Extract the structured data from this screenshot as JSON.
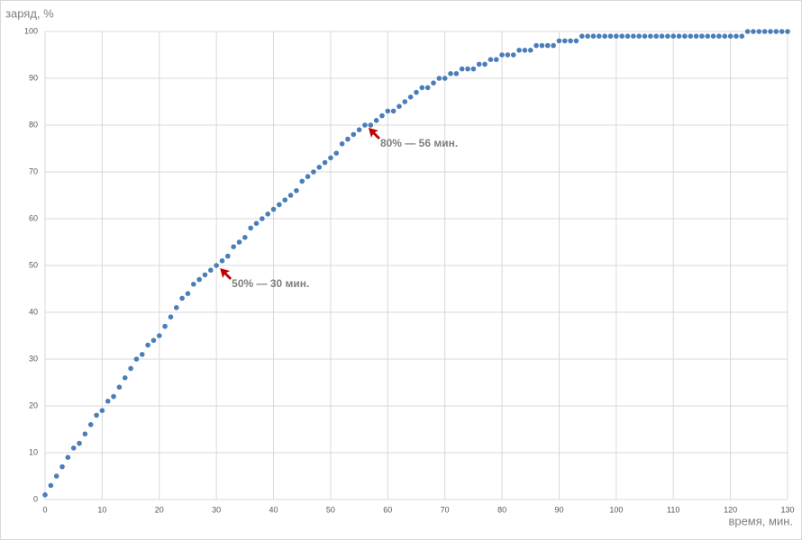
{
  "chart_data": {
    "type": "scatter",
    "y_label": "заряд, %",
    "x_label": "время, мин.",
    "x": [
      0,
      1,
      2,
      3,
      4,
      5,
      6,
      7,
      8,
      9,
      10,
      11,
      12,
      13,
      14,
      15,
      16,
      17,
      18,
      19,
      20,
      21,
      22,
      23,
      24,
      25,
      26,
      27,
      28,
      29,
      30,
      31,
      32,
      33,
      34,
      35,
      36,
      37,
      38,
      39,
      40,
      41,
      42,
      43,
      44,
      45,
      46,
      47,
      48,
      49,
      50,
      51,
      52,
      53,
      54,
      55,
      56,
      57,
      58,
      59,
      60,
      61,
      62,
      63,
      64,
      65,
      66,
      67,
      68,
      69,
      70,
      71,
      72,
      73,
      74,
      75,
      76,
      77,
      78,
      79,
      80,
      81,
      82,
      83,
      84,
      85,
      86,
      87,
      88,
      89,
      90,
      91,
      92,
      93,
      94,
      95,
      96,
      97,
      98,
      99,
      100,
      101,
      102,
      103,
      104,
      105,
      106,
      107,
      108,
      109,
      110,
      111,
      112,
      113,
      114,
      115,
      116,
      117,
      118,
      119,
      120,
      121,
      122,
      123,
      124,
      125,
      126,
      127,
      128,
      129,
      130
    ],
    "series": [
      {
        "color": "#4a7ebb",
        "values": [
          1,
          3,
          5,
          7,
          9,
          11,
          12,
          14,
          16,
          18,
          19,
          21,
          22,
          24,
          26,
          28,
          30,
          31,
          33,
          34,
          35,
          37,
          39,
          41,
          43,
          44,
          46,
          47,
          48,
          49,
          50,
          51,
          52,
          54,
          55,
          56,
          58,
          59,
          60,
          61,
          62,
          63,
          64,
          65,
          66,
          68,
          69,
          70,
          71,
          72,
          73,
          74,
          76,
          77,
          78,
          79,
          80,
          80,
          81,
          82,
          83,
          83,
          84,
          85,
          86,
          87,
          88,
          88,
          89,
          90,
          90,
          91,
          91,
          92,
          92,
          92,
          93,
          93,
          94,
          94,
          95,
          95,
          95,
          96,
          96,
          96,
          97,
          97,
          97,
          97,
          98,
          98,
          98,
          98,
          99,
          99,
          99,
          99,
          99,
          99,
          99,
          99,
          99,
          99,
          99,
          99,
          99,
          99,
          99,
          99,
          99,
          99,
          99,
          99,
          99,
          99,
          99,
          99,
          99,
          99,
          99,
          99,
          99,
          100,
          100,
          100,
          100,
          100,
          100,
          100,
          100
        ]
      }
    ],
    "annotations": [
      {
        "text": "50% — 30 мин.",
        "x": 30,
        "y": 50
      },
      {
        "text": "80% — 56 мин.",
        "x": 56,
        "y": 80
      }
    ],
    "annotation_color": "#c00000",
    "xlim": [
      0,
      130
    ],
    "xticks": [
      0,
      10,
      20,
      30,
      40,
      50,
      60,
      70,
      80,
      90,
      100,
      110,
      120,
      130
    ],
    "ylim": [
      0,
      100
    ],
    "yticks": [
      0,
      10,
      20,
      30,
      40,
      50,
      60,
      70,
      80,
      90,
      100
    ],
    "grid": true
  }
}
